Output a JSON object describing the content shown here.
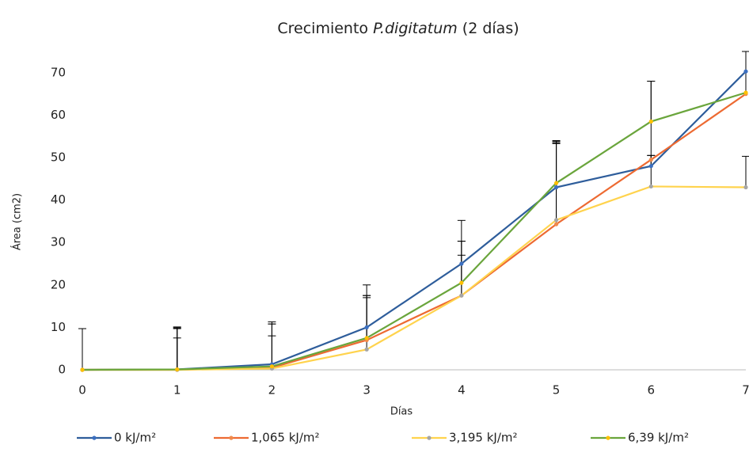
{
  "chart_data": {
    "type": "line",
    "title_parts": [
      "Crecimiento ",
      "P.digitatum",
      " (2 días)"
    ],
    "x_label": "Días",
    "y_label": "Área (cm2)",
    "x": [
      0,
      1,
      2,
      3,
      4,
      5,
      6,
      7
    ],
    "xlim": [
      0,
      7
    ],
    "xticks": [
      0,
      1,
      2,
      3,
      4,
      5,
      6,
      7
    ],
    "ylim": [
      0,
      75
    ],
    "yticks": [
      0,
      10,
      20,
      30,
      40,
      50,
      60,
      70
    ],
    "legend": "bottom",
    "series": [
      {
        "name": "0 kJ/m²",
        "color": "#2e5d9b",
        "marker_color": "#3b6fc0",
        "values": [
          0,
          0.1,
          1.3,
          10,
          25,
          43,
          48,
          70.3
        ],
        "errors": [
          9.7,
          10,
          10,
          10,
          10.2,
          11,
          20,
          4.7
        ]
      },
      {
        "name": "1,065 kJ/m²",
        "color": "#ed6a32",
        "marker_color": "#f08a4b",
        "values": [
          0,
          0,
          0.5,
          7,
          17.5,
          34.3,
          49.5,
          65
        ],
        "errors": [
          9.7,
          9.7,
          10.3,
          10.5,
          12.8,
          19.5,
          1,
          10
        ]
      },
      {
        "name": "3,195 kJ/m²",
        "color": "#ffd34d",
        "marker_color": "#a5a5a5",
        "values": [
          0,
          0,
          0.3,
          4.8,
          17.5,
          35.3,
          43.2,
          43
        ],
        "errors": [
          9.7,
          7.5,
          7.7,
          12.2,
          9.5,
          18,
          7.3,
          7.3
        ]
      },
      {
        "name": "6,39 kJ/m²",
        "color": "#6aa53c",
        "marker_color": "#ffc000",
        "values": [
          0,
          0.1,
          0.8,
          7.5,
          20.5,
          44,
          58.5,
          65.3
        ],
        "errors": [
          9.7,
          9.8,
          10,
          10,
          9.8,
          9.5,
          9.5,
          9.7
        ]
      }
    ]
  }
}
